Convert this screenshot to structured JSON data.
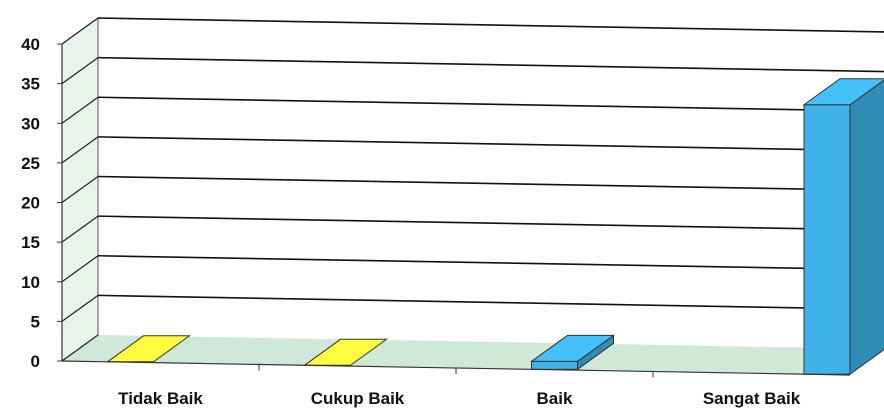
{
  "chart_data": {
    "type": "bar",
    "categories": [
      "Tidak Baik",
      "Cukup Baik",
      "Baik",
      "Sangat Baik"
    ],
    "values": [
      0,
      0,
      1,
      34
    ],
    "ylim": [
      0,
      40
    ],
    "yticks": [
      "0",
      "5",
      "10",
      "15",
      "20",
      "25",
      "30",
      "35",
      "40"
    ],
    "grid": true,
    "bar_colors": [
      "#f2ea3a",
      "#f2ea3a",
      "#3fb3e8",
      "#3fb3e8"
    ],
    "floor_color": "#cfe8d8",
    "wall_color": "#e8f3ec"
  }
}
